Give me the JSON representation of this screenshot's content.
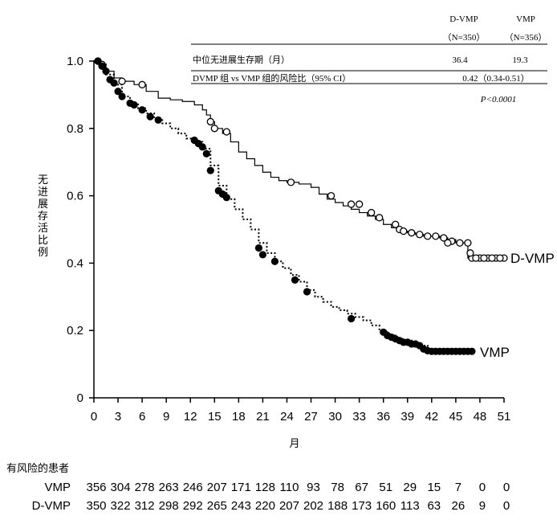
{
  "chart_data": {
    "type": "line",
    "ylabel": "无进展存活比例",
    "xlabel": "月",
    "xlim": [
      0,
      51
    ],
    "ylim": [
      0,
      1.0
    ],
    "x_ticks": [
      "0",
      "3",
      "6",
      "9",
      "12",
      "15",
      "18",
      "21",
      "24",
      "27",
      "30",
      "33",
      "36",
      "39",
      "42",
      "45",
      "48",
      "51"
    ],
    "y_ticks": [
      "0",
      "0.2",
      "0.4",
      "0.6",
      "0.8",
      "1.0"
    ],
    "grid": false,
    "series": [
      {
        "name": "D-VMP",
        "line_style": "solid",
        "marker": "open-circle",
        "points": [
          [
            0,
            1.0
          ],
          [
            0.8,
            0.99
          ],
          [
            1.5,
            0.97
          ],
          [
            2.5,
            0.95
          ],
          [
            3.5,
            0.94
          ],
          [
            5,
            0.93
          ],
          [
            6.5,
            0.91
          ],
          [
            8,
            0.89
          ],
          [
            9.5,
            0.885
          ],
          [
            11,
            0.88
          ],
          [
            12.5,
            0.87
          ],
          [
            13.5,
            0.855
          ],
          [
            14,
            0.84
          ],
          [
            14.5,
            0.82
          ],
          [
            15,
            0.8
          ],
          [
            16,
            0.785
          ],
          [
            17,
            0.76
          ],
          [
            18,
            0.73
          ],
          [
            19,
            0.71
          ],
          [
            20,
            0.69
          ],
          [
            21,
            0.67
          ],
          [
            22,
            0.655
          ],
          [
            23,
            0.645
          ],
          [
            24,
            0.64
          ],
          [
            25.5,
            0.635
          ],
          [
            27,
            0.625
          ],
          [
            28,
            0.605
          ],
          [
            29,
            0.59
          ],
          [
            30,
            0.58
          ],
          [
            31,
            0.57
          ],
          [
            32,
            0.56
          ],
          [
            33,
            0.55
          ],
          [
            34,
            0.54
          ],
          [
            35,
            0.53
          ],
          [
            36,
            0.515
          ],
          [
            37,
            0.505
          ],
          [
            38,
            0.495
          ],
          [
            39,
            0.49
          ],
          [
            40,
            0.485
          ],
          [
            41,
            0.48
          ],
          [
            42,
            0.48
          ],
          [
            43,
            0.475
          ],
          [
            44,
            0.47
          ],
          [
            45,
            0.46
          ],
          [
            46,
            0.46
          ],
          [
            46.5,
            0.415
          ],
          [
            47,
            0.415
          ],
          [
            51,
            0.415
          ]
        ],
        "censor_marks": [
          [
            0.5,
            1.0
          ],
          [
            1.0,
            0.99
          ],
          [
            3.5,
            0.94
          ],
          [
            6.0,
            0.93
          ],
          [
            14.5,
            0.82
          ],
          [
            15.0,
            0.8
          ],
          [
            16.5,
            0.79
          ],
          [
            24.5,
            0.64
          ],
          [
            29.5,
            0.6
          ],
          [
            32.0,
            0.575
          ],
          [
            33.0,
            0.575
          ],
          [
            34.5,
            0.55
          ],
          [
            35.5,
            0.535
          ],
          [
            37.5,
            0.515
          ],
          [
            38.0,
            0.5
          ],
          [
            38.5,
            0.495
          ],
          [
            39.5,
            0.49
          ],
          [
            40.5,
            0.485
          ],
          [
            41.5,
            0.48
          ],
          [
            42.5,
            0.48
          ],
          [
            43.5,
            0.475
          ],
          [
            44.5,
            0.465
          ],
          [
            45.5,
            0.46
          ],
          [
            46.5,
            0.46
          ],
          [
            47.0,
            0.415
          ],
          [
            48.0,
            0.415
          ],
          [
            49.0,
            0.415
          ],
          [
            50.0,
            0.415
          ],
          [
            51.0,
            0.415
          ],
          [
            46.8,
            0.43
          ],
          [
            47.5,
            0.415
          ],
          [
            48.5,
            0.415
          ],
          [
            49.5,
            0.415
          ],
          [
            50.5,
            0.415
          ],
          [
            44.0,
            0.46
          ]
        ]
      },
      {
        "name": "VMP",
        "line_style": "dotted",
        "marker": "filled-circle",
        "points": [
          [
            0,
            1.0
          ],
          [
            0.8,
            0.99
          ],
          [
            1.5,
            0.96
          ],
          [
            2.5,
            0.93
          ],
          [
            3.5,
            0.895
          ],
          [
            4.5,
            0.875
          ],
          [
            5.5,
            0.86
          ],
          [
            6.5,
            0.845
          ],
          [
            7.5,
            0.83
          ],
          [
            8.5,
            0.815
          ],
          [
            9.5,
            0.8
          ],
          [
            10.5,
            0.785
          ],
          [
            11.5,
            0.77
          ],
          [
            12.5,
            0.76
          ],
          [
            13.5,
            0.74
          ],
          [
            14.5,
            0.69
          ],
          [
            15.5,
            0.63
          ],
          [
            16.5,
            0.59
          ],
          [
            17.5,
            0.56
          ],
          [
            18.5,
            0.53
          ],
          [
            19.5,
            0.5
          ],
          [
            20.5,
            0.46
          ],
          [
            21.5,
            0.43
          ],
          [
            22.5,
            0.405
          ],
          [
            23.5,
            0.385
          ],
          [
            24.5,
            0.365
          ],
          [
            25.5,
            0.345
          ],
          [
            26.5,
            0.32
          ],
          [
            27.5,
            0.3
          ],
          [
            28.5,
            0.285
          ],
          [
            29.5,
            0.27
          ],
          [
            30.5,
            0.26
          ],
          [
            31.5,
            0.25
          ],
          [
            32.5,
            0.24
          ],
          [
            33.5,
            0.23
          ],
          [
            34.5,
            0.215
          ],
          [
            35.5,
            0.2
          ],
          [
            36.5,
            0.185
          ],
          [
            37.5,
            0.175
          ],
          [
            38.5,
            0.17
          ],
          [
            39.5,
            0.165
          ],
          [
            40.5,
            0.155
          ],
          [
            41.5,
            0.145
          ],
          [
            42,
            0.138
          ],
          [
            44,
            0.138
          ],
          [
            47,
            0.138
          ]
        ],
        "censor_marks": [
          [
            0.5,
            1.0
          ],
          [
            1.0,
            0.985
          ],
          [
            1.5,
            0.97
          ],
          [
            2.0,
            0.945
          ],
          [
            2.5,
            0.935
          ],
          [
            3.0,
            0.91
          ],
          [
            3.5,
            0.895
          ],
          [
            4.5,
            0.875
          ],
          [
            5.0,
            0.87
          ],
          [
            6.0,
            0.855
          ],
          [
            7.0,
            0.835
          ],
          [
            8.0,
            0.825
          ],
          [
            12.5,
            0.765
          ],
          [
            13.0,
            0.755
          ],
          [
            13.5,
            0.745
          ],
          [
            14.0,
            0.725
          ],
          [
            14.5,
            0.675
          ],
          [
            15.5,
            0.615
          ],
          [
            16.0,
            0.605
          ],
          [
            16.5,
            0.595
          ],
          [
            20.5,
            0.445
          ],
          [
            21.0,
            0.425
          ],
          [
            22.5,
            0.405
          ],
          [
            25.0,
            0.35
          ],
          [
            26.5,
            0.315
          ],
          [
            32.0,
            0.235
          ],
          [
            36.0,
            0.195
          ],
          [
            36.5,
            0.185
          ],
          [
            37.0,
            0.18
          ],
          [
            37.5,
            0.175
          ],
          [
            38.0,
            0.17
          ],
          [
            38.5,
            0.165
          ],
          [
            39.0,
            0.165
          ],
          [
            39.5,
            0.16
          ],
          [
            40.0,
            0.16
          ],
          [
            40.5,
            0.155
          ],
          [
            41.0,
            0.145
          ],
          [
            41.5,
            0.14
          ],
          [
            42.0,
            0.138
          ],
          [
            42.5,
            0.138
          ],
          [
            43.0,
            0.138
          ],
          [
            43.5,
            0.138
          ],
          [
            44.0,
            0.138
          ],
          [
            44.5,
            0.138
          ],
          [
            45.0,
            0.138
          ],
          [
            45.5,
            0.138
          ],
          [
            46.0,
            0.138
          ],
          [
            46.5,
            0.138
          ],
          [
            47.0,
            0.138
          ]
        ]
      }
    ],
    "summary_table": {
      "col_headers": [
        "D-VMP",
        "VMP"
      ],
      "col_n": [
        "（N=350）",
        "（N=356）"
      ],
      "rows": [
        {
          "label": "中位无进展生存期（月）",
          "dvmp": "36.4",
          "vmp": "19.3"
        },
        {
          "label": "DVMP 组 vs VMP 组的风险比（95% CI）",
          "combined": "0.42（0.34-0.51）"
        }
      ],
      "pvalue": "P<0.0001"
    },
    "at_risk": {
      "title": "有风险的患者",
      "rows": [
        {
          "name": "VMP",
          "values": [
            "356",
            "304",
            "278",
            "263",
            "246",
            "207",
            "171",
            "128",
            "110",
            "93",
            "78",
            "67",
            "51",
            "29",
            "15",
            "7",
            "0",
            "0"
          ]
        },
        {
          "name": "D-VMP",
          "values": [
            "350",
            "322",
            "312",
            "298",
            "292",
            "265",
            "243",
            "220",
            "207",
            "202",
            "188",
            "173",
            "160",
            "113",
            "63",
            "26",
            "9",
            "0"
          ]
        }
      ]
    }
  }
}
